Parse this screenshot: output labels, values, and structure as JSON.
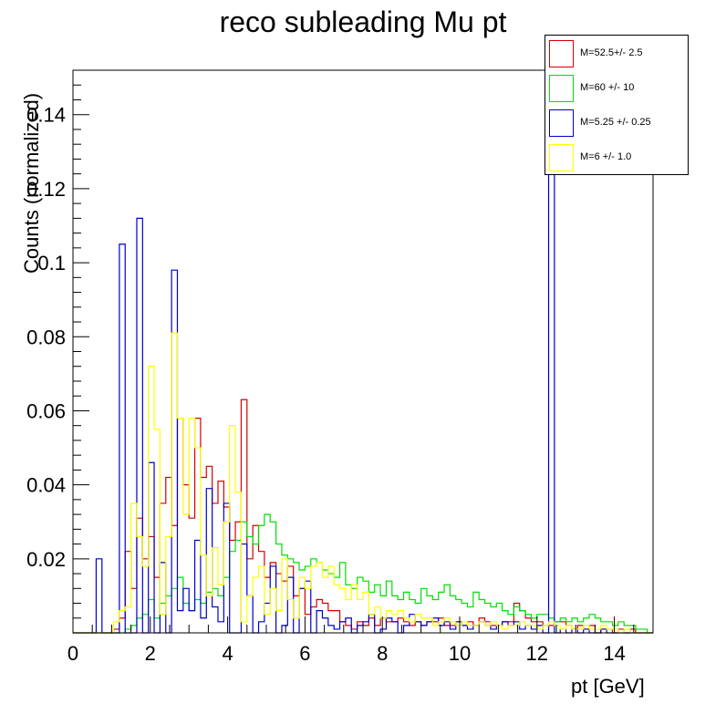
{
  "chart_data": {
    "type": "histogram-step",
    "title": "reco subleading Mu pt",
    "xlabel": "pt [GeV]",
    "ylabel": "Counts (normalized)",
    "xlim": [
      0,
      15
    ],
    "ylim": [
      0,
      0.152
    ],
    "bin_width": 0.15,
    "x_ticks": [
      0,
      2,
      4,
      6,
      8,
      10,
      12,
      14
    ],
    "y_ticks": [
      0.02,
      0.04,
      0.06,
      0.08,
      0.1,
      0.12,
      0.14
    ],
    "y_tick_labels": [
      "0.02",
      "0.04",
      "0.06",
      "0.08",
      "0.1",
      "0.12",
      "0.14"
    ],
    "legend_position": "top-right",
    "series": [
      {
        "name": "M=52.5+/- 2.5",
        "color": "#d40000",
        "values": [
          0,
          0,
          0,
          0,
          0,
          0,
          0,
          0.001,
          0.004,
          0.022,
          0.012,
          0.031,
          0.02,
          0.026,
          0.015,
          0.035,
          0.042,
          0.029,
          0.058,
          0.04,
          0.031,
          0.058,
          0.042,
          0.045,
          0.035,
          0.041,
          0.034,
          0.025,
          0.03,
          0.063,
          0.02,
          0.029,
          0.022,
          0.015,
          0.019,
          0.016,
          0.014,
          0.018,
          0.01,
          0.012,
          0.005,
          0.007,
          0.009,
          0.008,
          0.006,
          0.006,
          0.003,
          0.002,
          0.001,
          0.003,
          0.002,
          0.004,
          0.002,
          0.004,
          0.003,
          0.003,
          0.004,
          0.003,
          0.002,
          0.003,
          0.002,
          0.003,
          0.003,
          0.004,
          0.002,
          0.002,
          0.003,
          0.002,
          0.003,
          0.002,
          0.004,
          0.003,
          0.002,
          0.002,
          0.003,
          0.003,
          0.008,
          0.006,
          0.004,
          0.003,
          0.003,
          0.002,
          0.002,
          0.003,
          0.003,
          0.002,
          0.001,
          0.002,
          0.001,
          0.002,
          0,
          0.001,
          0.001,
          0,
          0.001,
          0,
          0.001,
          0,
          0,
          0
        ]
      },
      {
        "name": "M=60 +/- 10",
        "color": "#00e000",
        "values": [
          0,
          0,
          0,
          0,
          0,
          0,
          0,
          0,
          0,
          0.001,
          0.002,
          0.004,
          0.005,
          0.009,
          0.004,
          0.008,
          0.01,
          0.012,
          0.015,
          0.008,
          0.006,
          0.009,
          0.008,
          0.011,
          0.012,
          0.01,
          0.015,
          0.022,
          0.025,
          0.03,
          0.026,
          0.024,
          0.029,
          0.032,
          0.03,
          0.024,
          0.021,
          0.02,
          0.019,
          0.017,
          0.018,
          0.02,
          0.019,
          0.017,
          0.016,
          0.015,
          0.019,
          0.013,
          0.012,
          0.015,
          0.014,
          0.011,
          0.013,
          0.01,
          0.014,
          0.01,
          0.009,
          0.011,
          0.009,
          0.008,
          0.012,
          0.01,
          0.009,
          0.011,
          0.013,
          0.01,
          0.009,
          0.008,
          0.007,
          0.011,
          0.009,
          0.008,
          0.007,
          0.008,
          0.006,
          0.005,
          0.007,
          0.006,
          0.005,
          0.004,
          0.005,
          0.005,
          0.004,
          0.003,
          0.004,
          0.003,
          0.004,
          0.003,
          0.004,
          0.005,
          0.004,
          0.003,
          0.003,
          0.002,
          0.003,
          0.002,
          0.002,
          0.001,
          0.001,
          0
        ]
      },
      {
        "name": "M=5.25 +/- 0.25",
        "color": "#0000cc",
        "values": [
          0,
          0,
          0,
          0,
          0.02,
          0,
          0,
          0,
          0.105,
          0,
          0,
          0.112,
          0,
          0.046,
          0,
          0.019,
          0,
          0.098,
          0.006,
          0.012,
          0.006,
          0.025,
          0.004,
          0.039,
          0.007,
          0.003,
          0.035,
          0,
          0,
          0.024,
          0.01,
          0,
          0.003,
          0.008,
          0.018,
          0,
          0.002,
          0.015,
          0,
          0.012,
          0.014,
          0,
          0.006,
          0.004,
          0.002,
          0.001,
          0.003,
          0.004,
          0,
          0.002,
          0.003,
          0.005,
          0,
          0.001,
          0.004,
          0.003,
          0,
          0.002,
          0.005,
          0.003,
          0.002,
          0.003,
          0.004,
          0.002,
          0.003,
          0.001,
          0.003,
          0.002,
          0.001,
          0.002,
          0.003,
          0.002,
          0.001,
          0.002,
          0.003,
          0.002,
          0.003,
          0.001,
          0.002,
          0.001,
          0.002,
          0,
          0.129,
          0,
          0.001,
          0,
          0.001,
          0,
          0.001,
          0,
          0,
          0.001,
          0,
          0,
          0,
          0,
          0,
          0,
          0,
          0
        ]
      },
      {
        "name": "M=6 +/- 1.0",
        "color": "#ffff00",
        "values": [
          0,
          0,
          0,
          0,
          0,
          0,
          0,
          0.003,
          0.006,
          0.007,
          0.035,
          0.026,
          0.018,
          0.072,
          0.055,
          0.005,
          0.026,
          0.081,
          0.058,
          0.032,
          0.058,
          0.05,
          0.021,
          0.01,
          0.023,
          0.013,
          0.03,
          0.056,
          0.038,
          0.003,
          0.01,
          0.015,
          0.018,
          0.005,
          0.012,
          0.006,
          0.02,
          0.009,
          0.004,
          0.015,
          0.012,
          0.018,
          0.019,
          0.015,
          0.018,
          0.013,
          0.012,
          0.009,
          0.013,
          0.009,
          0.011,
          0.005,
          0.007,
          0.004,
          0.006,
          0.005,
          0.006,
          0.004,
          0.003,
          0.005,
          0.004,
          0.004,
          0.002,
          0.003,
          0.004,
          0.003,
          0.002,
          0.003,
          0.002,
          0.002,
          0.003,
          0.002,
          0.003,
          0.002,
          0.001,
          0.002,
          0.002,
          0.003,
          0.002,
          0.002,
          0.001,
          0.002,
          0.003,
          0.002,
          0.001,
          0.002,
          0.001,
          0.001,
          0.002,
          0.001,
          0.001,
          0.002,
          0.001,
          0.001,
          0,
          0.001,
          0,
          0,
          0,
          0
        ]
      }
    ]
  }
}
